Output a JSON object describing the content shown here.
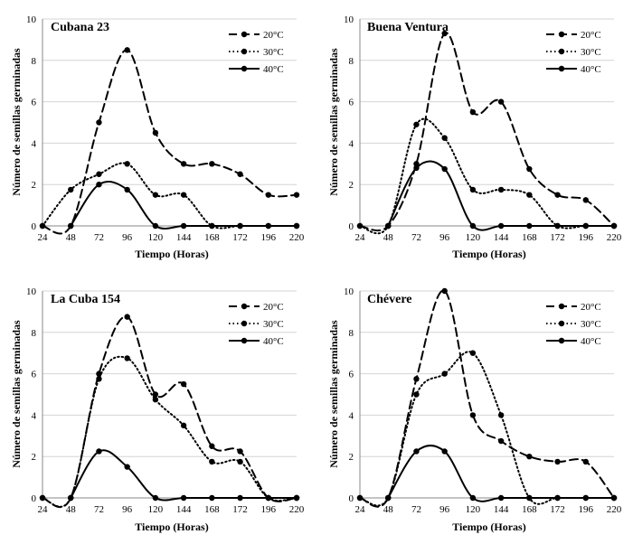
{
  "chart_data": [
    {
      "type": "line",
      "title": "Cubana 23",
      "xlabel": "Tiempo (Horas)",
      "ylabel": "Número de semillas germinadas",
      "categories": [
        "24",
        "48",
        "72",
        "96",
        "120",
        "144",
        "168",
        "172",
        "196",
        "220"
      ],
      "ylim": [
        0,
        10
      ],
      "yticks": [
        "0",
        "2",
        "4",
        "6",
        "8",
        "10"
      ],
      "series": [
        {
          "name": "20°C",
          "style": "dashed",
          "values": [
            0,
            0,
            5,
            8.5,
            4.5,
            3,
            3,
            2.5,
            1.5,
            1.5
          ]
        },
        {
          "name": "30°C",
          "style": "dotted",
          "values": [
            0,
            1.75,
            2.5,
            3,
            1.5,
            1.5,
            0,
            0,
            0,
            0
          ]
        },
        {
          "name": "40°C",
          "style": "solid",
          "values": [
            null,
            0,
            2,
            1.75,
            0,
            0,
            0,
            0,
            0,
            0
          ]
        }
      ]
    },
    {
      "type": "line",
      "title": "Buena Ventura",
      "xlabel": "Tiempo (Horas)",
      "ylabel": "Número de semillas germinadas",
      "categories": [
        "24",
        "48",
        "72",
        "96",
        "120",
        "144",
        "168",
        "172",
        "196",
        "220"
      ],
      "ylim": [
        0,
        10
      ],
      "yticks": [
        "0",
        "2",
        "4",
        "6",
        "8",
        "10"
      ],
      "series": [
        {
          "name": "20°C",
          "style": "dashed",
          "values": [
            0,
            0,
            3,
            9.3,
            5.5,
            6,
            2.75,
            1.5,
            1.25,
            0
          ]
        },
        {
          "name": "30°C",
          "style": "dotted",
          "values": [
            0,
            0,
            4.9,
            4.25,
            1.75,
            1.75,
            1.5,
            0,
            0,
            0
          ]
        },
        {
          "name": "40°C",
          "style": "solid",
          "values": [
            null,
            0,
            2.8,
            2.75,
            0,
            0,
            0,
            0,
            0,
            0
          ]
        }
      ]
    },
    {
      "type": "line",
      "title": "La Cuba 154",
      "xlabel": "Tiempo (Horas)",
      "ylabel": "Número de semillas germinadas",
      "categories": [
        "24",
        "48",
        "72",
        "96",
        "120",
        "144",
        "168",
        "172",
        "196",
        "220"
      ],
      "ylim": [
        0,
        10
      ],
      "yticks": [
        "0",
        "2",
        "4",
        "6",
        "8",
        "10"
      ],
      "series": [
        {
          "name": "20°C",
          "style": "dashed",
          "values": [
            0,
            0,
            6,
            8.75,
            5,
            5.5,
            2.5,
            2.25,
            0,
            0
          ]
        },
        {
          "name": "30°C",
          "style": "dotted",
          "values": [
            0,
            0,
            5.75,
            6.75,
            4.75,
            3.5,
            1.75,
            1.75,
            0,
            0
          ]
        },
        {
          "name": "40°C",
          "style": "solid",
          "values": [
            null,
            0,
            2.25,
            1.5,
            0,
            0,
            0,
            0,
            0,
            0
          ]
        }
      ]
    },
    {
      "type": "line",
      "title": "Chévere",
      "xlabel": "Tiempo (Horas)",
      "ylabel": "Número de semillas germinadas",
      "categories": [
        "24",
        "48",
        "72",
        "96",
        "120",
        "144",
        "168",
        "172",
        "196",
        "220"
      ],
      "ylim": [
        0,
        10
      ],
      "yticks": [
        "0",
        "2",
        "4",
        "6",
        "8",
        "10"
      ],
      "series": [
        {
          "name": "20°C",
          "style": "dashed",
          "values": [
            0,
            0,
            5.75,
            10,
            4,
            2.75,
            2,
            1.75,
            1.75,
            0
          ]
        },
        {
          "name": "30°C",
          "style": "dotted",
          "values": [
            0,
            0,
            5,
            6,
            7,
            4,
            0,
            0,
            0,
            0
          ]
        },
        {
          "name": "40°C",
          "style": "solid",
          "values": [
            null,
            0,
            2.25,
            2.25,
            0,
            0,
            0,
            0,
            0,
            0
          ]
        }
      ]
    }
  ]
}
